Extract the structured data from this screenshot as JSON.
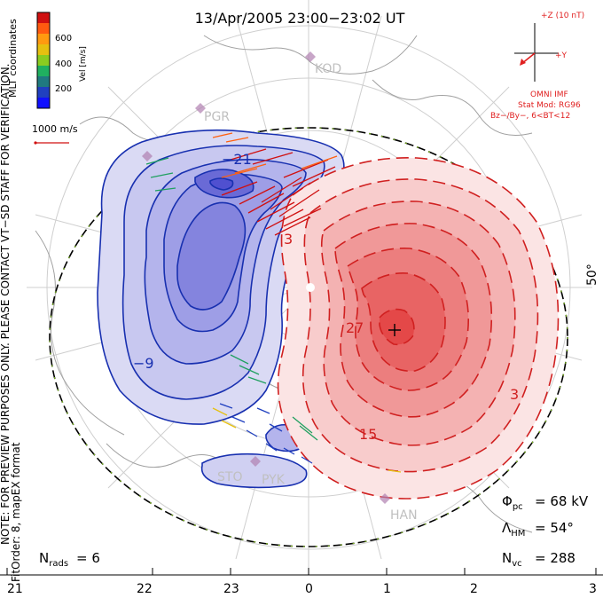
{
  "header": {
    "title": "13/Apr/2005 23:00−23:02 UT"
  },
  "side_note": {
    "line1": "NOTE: FOR PREVIEW PURPOSES ONLY. PLEASE CONTACT VT−SD STAFF FOR VERIFICATION.",
    "line2": "FitOrder: 8, mapEX format",
    "coords": "MLT coordinates"
  },
  "color_scale": {
    "label": "Vel [m/s]",
    "ticks": [
      "600",
      "400",
      "200"
    ],
    "colors": [
      "#d01010",
      "#ff5a10",
      "#ff9a10",
      "#e6c010",
      "#8acc20",
      "#20b060",
      "#207a80",
      "#2040c0",
      "#1010ff"
    ]
  },
  "reference_vector": {
    "label": "1000 m/s"
  },
  "imf": {
    "z_label": "+Z (10 nT)",
    "y_label": "+Y",
    "source": "OMNI IMF",
    "model": "Stat Mod: RG96",
    "condition": "Bz−/By−, 6<BT<12"
  },
  "stats": {
    "phi_pc": "= 68 kV",
    "lambda_hm": "= 54°",
    "n_vc": "= 288",
    "n_rads": "= 6"
  },
  "lat_label": "50°",
  "mlt_labels": [
    "21",
    "22",
    "23",
    "0",
    "1",
    "2",
    "3"
  ],
  "stations": [
    "KOD",
    "PGR",
    "STO",
    "PYK",
    "HAN"
  ],
  "contour_labels": {
    "neg": [
      "−9",
      "−21",
      "−9"
    ],
    "pos": [
      "3",
      "27",
      "15",
      "3"
    ]
  },
  "colors": {
    "neg_fill": "#5050e0",
    "neg_line": "#1830b0",
    "pos_fill": "#f03030",
    "pos_line": "#d02020",
    "land": "#9a9a9a",
    "grid": "#c8c8c8"
  }
}
